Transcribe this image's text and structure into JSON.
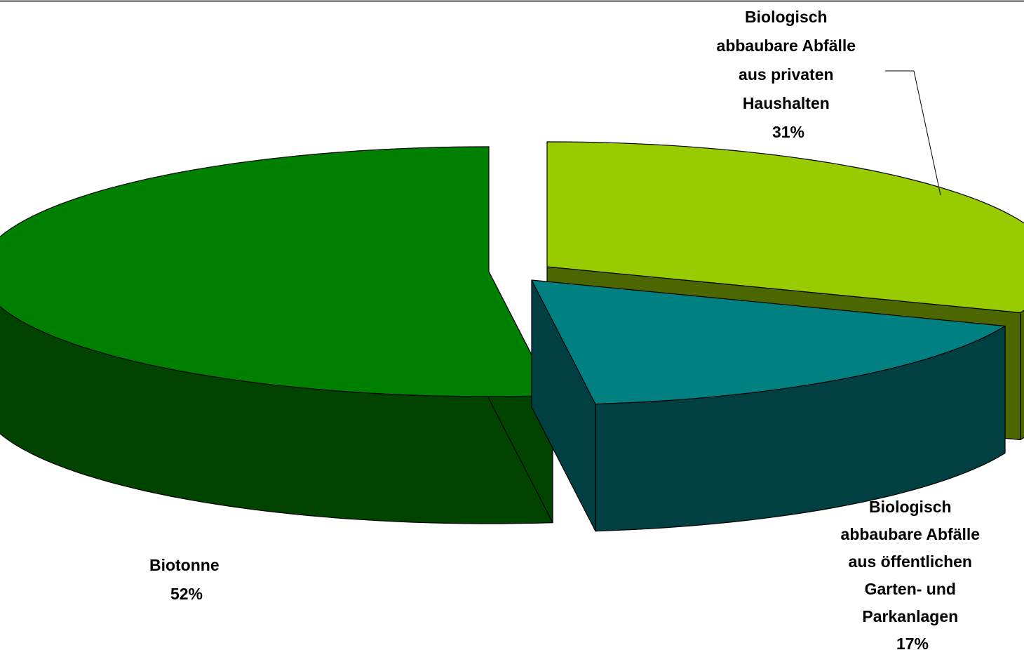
{
  "chart_data": {
    "type": "pie",
    "style": "3d-exploded",
    "legend": "none",
    "slices": [
      {
        "label_lines": [
          "Biotonne"
        ],
        "value": 52,
        "percent_label": "52%",
        "color": "#008000",
        "side_color": "#004400"
      },
      {
        "label_lines": [
          "Biologisch",
          "abbaubare Abfälle",
          "aus öffentlichen",
          "Garten- und",
          "Parkanlagen"
        ],
        "value": 17,
        "percent_label": "17%",
        "color": "#008080",
        "side_color": "#004042"
      },
      {
        "label_lines": [
          "Biologisch",
          "abbaubare Abfälle",
          "aus privaten",
          "Haushalten"
        ],
        "value": 31,
        "percent_label": "31%",
        "color": "#99CC00",
        "side_color": "#4C6600"
      }
    ]
  }
}
